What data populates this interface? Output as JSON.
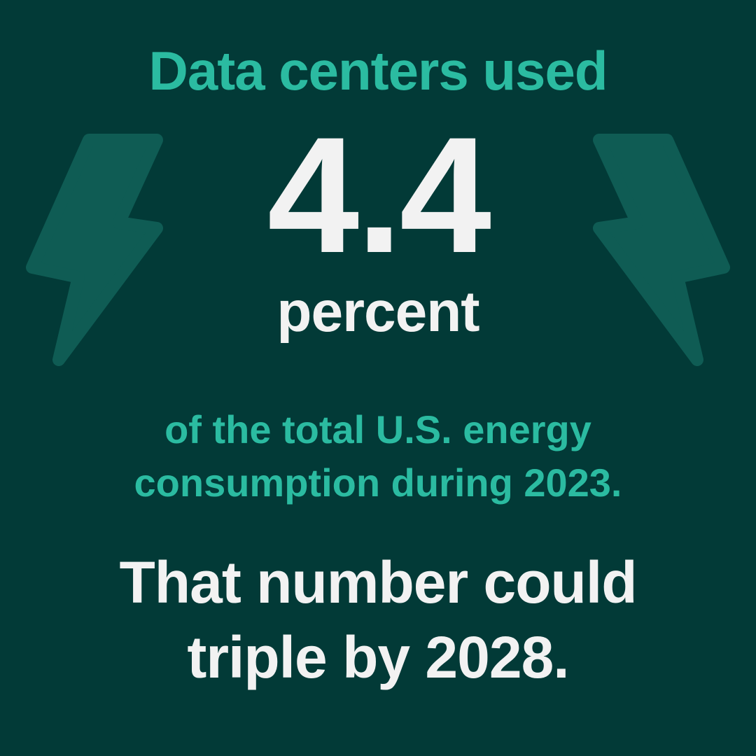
{
  "headline": "Data centers used",
  "stat": {
    "value": "4.4",
    "unit": "percent"
  },
  "description": [
    "of the total U.S. energy",
    "consumption during 2023."
  ],
  "conclusion": [
    "That number could",
    "triple by 2028."
  ]
}
